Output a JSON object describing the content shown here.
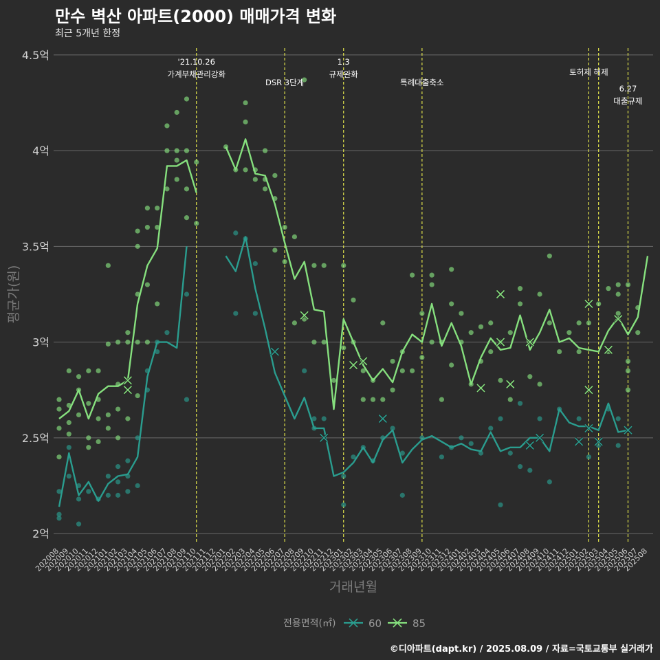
{
  "title": "만수 벽산 아파트(2000) 매매가격 변화",
  "subtitle": "최근 5개년 한정",
  "footer": "©디아파트(dapt.kr) / 2025.08.09 / 자료=국토교통부 실거래가",
  "colors": {
    "background": "#2b2b2b",
    "grid": "#6a6a6a",
    "series_60": "#2a9d8f",
    "series_85": "#86e07e",
    "event_line": "#e0e34a"
  },
  "chart_data": {
    "type": "line",
    "xlabel": "거래년월",
    "ylabel": "평균가(원)",
    "ylim": [
      1.95,
      4.55
    ],
    "yticks": [
      2,
      2.5,
      3,
      3.5,
      4,
      4.5
    ],
    "ytick_labels": [
      "2억",
      "2.5억",
      "3억",
      "3.5억",
      "4억",
      "4.5억"
    ],
    "grid": true,
    "legend_title": "전용면적(㎡)",
    "legend_position": "bottom",
    "months": [
      "202008",
      "202009",
      "202010",
      "202011",
      "202012",
      "202101",
      "202102",
      "202103",
      "202104",
      "202105",
      "202106",
      "202107",
      "202108",
      "202109",
      "202110",
      "202111",
      "202112",
      "202201",
      "202202",
      "202203",
      "202204",
      "202205",
      "202206",
      "202207",
      "202208",
      "202209",
      "202210",
      "202211",
      "202212",
      "202301",
      "202302",
      "202303",
      "202304",
      "202305",
      "202306",
      "202307",
      "202308",
      "202309",
      "202310",
      "202311",
      "202312",
      "202401",
      "202402",
      "202403",
      "202404",
      "202405",
      "202406",
      "202407",
      "202408",
      "202409",
      "202410",
      "202411",
      "202412",
      "202501",
      "202502",
      "202503",
      "202504",
      "202505",
      "202506",
      "202507",
      "202508"
    ],
    "series": [
      {
        "name": "60",
        "color": "#2a9d8f",
        "values": [
          2.14,
          2.42,
          2.2,
          2.27,
          2.17,
          2.26,
          2.3,
          2.31,
          2.4,
          2.82,
          3.0,
          3.0,
          2.97,
          3.5,
          null,
          null,
          null,
          3.45,
          3.37,
          3.55,
          3.28,
          3.07,
          2.84,
          2.72,
          2.6,
          2.71,
          2.55,
          2.55,
          2.3,
          2.32,
          2.37,
          2.45,
          2.37,
          2.49,
          2.54,
          2.37,
          2.44,
          2.49,
          2.51,
          2.48,
          2.45,
          2.47,
          2.44,
          2.43,
          2.53,
          2.43,
          2.45,
          2.45,
          2.5,
          2.5,
          2.43,
          2.65,
          2.58,
          2.56,
          2.56,
          2.54,
          2.68,
          2.53,
          2.54,
          null,
          null
        ],
        "cancelled": [
          [
            "202206",
            2.95
          ],
          [
            "202211",
            2.5
          ],
          [
            "202305",
            2.6
          ],
          [
            "202408",
            2.46
          ],
          [
            "202409",
            2.5
          ],
          [
            "202501",
            2.48
          ],
          [
            "202502",
            2.55
          ],
          [
            "202503",
            2.48
          ],
          [
            "202506",
            2.54
          ]
        ]
      },
      {
        "name": "85",
        "color": "#86e07e",
        "values": [
          2.6,
          2.64,
          2.75,
          2.6,
          2.73,
          2.77,
          2.77,
          2.8,
          3.2,
          3.4,
          3.49,
          3.92,
          3.92,
          3.95,
          3.78,
          null,
          null,
          4.02,
          3.9,
          4.06,
          3.88,
          3.87,
          3.72,
          3.52,
          3.33,
          3.42,
          3.17,
          3.16,
          2.65,
          3.12,
          3.0,
          2.88,
          2.8,
          2.86,
          2.79,
          2.95,
          3.04,
          3.0,
          3.2,
          2.98,
          3.1,
          2.98,
          2.78,
          2.92,
          3.02,
          2.96,
          2.97,
          3.14,
          2.96,
          3.05,
          3.17,
          3.0,
          3.02,
          2.97,
          2.96,
          2.95,
          3.06,
          3.13,
          3.04,
          3.13,
          3.45
        ],
        "cancelled": [
          [
            "202103",
            2.8
          ],
          [
            "202103",
            2.75
          ],
          [
            "202209",
            3.14
          ],
          [
            "202302",
            2.88
          ],
          [
            "202303",
            2.9
          ],
          [
            "202403",
            2.76
          ],
          [
            "202405",
            3.25
          ],
          [
            "202405",
            3.0
          ],
          [
            "202406",
            2.78
          ],
          [
            "202408",
            3.0
          ],
          [
            "202502",
            2.75
          ],
          [
            "202502",
            3.2
          ],
          [
            "202504",
            2.96
          ],
          [
            "202505",
            3.12
          ]
        ]
      }
    ],
    "scatter_60": [
      [
        "202008",
        2.08
      ],
      [
        "202008",
        2.1
      ],
      [
        "202008",
        2.22
      ],
      [
        "202009",
        2.3
      ],
      [
        "202009",
        2.45
      ],
      [
        "202010",
        2.05
      ],
      [
        "202010",
        2.18
      ],
      [
        "202010",
        2.25
      ],
      [
        "202011",
        2.22
      ],
      [
        "202012",
        2.18
      ],
      [
        "202101",
        2.2
      ],
      [
        "202101",
        2.3
      ],
      [
        "202102",
        2.2
      ],
      [
        "202102",
        2.27
      ],
      [
        "202102",
        2.35
      ],
      [
        "202103",
        2.22
      ],
      [
        "202103",
        2.3
      ],
      [
        "202103",
        2.38
      ],
      [
        "202104",
        2.25
      ],
      [
        "202104",
        2.5
      ],
      [
        "202105",
        2.75
      ],
      [
        "202105",
        2.85
      ],
      [
        "202106",
        2.95
      ],
      [
        "202106",
        3.0
      ],
      [
        "202107",
        3.05
      ],
      [
        "202109",
        2.7
      ],
      [
        "202109",
        3.25
      ],
      [
        "202202",
        3.57
      ],
      [
        "202202",
        3.15
      ],
      [
        "202203",
        3.54
      ],
      [
        "202204",
        3.41
      ],
      [
        "202204",
        3.15
      ],
      [
        "202209",
        2.85
      ],
      [
        "202210",
        2.6
      ],
      [
        "202210",
        2.55
      ],
      [
        "202211",
        2.6
      ],
      [
        "202301",
        2.3
      ],
      [
        "202301",
        2.15
      ],
      [
        "202302",
        2.4
      ],
      [
        "202303",
        2.45
      ],
      [
        "202304",
        2.38
      ],
      [
        "202305",
        2.5
      ],
      [
        "202306",
        2.55
      ],
      [
        "202307",
        2.2
      ],
      [
        "202307",
        2.42
      ],
      [
        "202309",
        2.5
      ],
      [
        "202311",
        2.4
      ],
      [
        "202312",
        2.45
      ],
      [
        "202401",
        2.5
      ],
      [
        "202402",
        2.47
      ],
      [
        "202403",
        2.42
      ],
      [
        "202404",
        2.55
      ],
      [
        "202405",
        2.15
      ],
      [
        "202405",
        2.6
      ],
      [
        "202406",
        2.42
      ],
      [
        "202407",
        2.35
      ],
      [
        "202407",
        2.68
      ],
      [
        "202408",
        2.33
      ],
      [
        "202409",
        2.6
      ],
      [
        "202410",
        2.27
      ],
      [
        "202411",
        2.65
      ],
      [
        "202501",
        2.6
      ],
      [
        "202502",
        2.4
      ],
      [
        "202503",
        2.46
      ],
      [
        "202504",
        2.65
      ],
      [
        "202505",
        2.46
      ],
      [
        "202505",
        2.6
      ]
    ],
    "scatter_85": [
      [
        "202008",
        2.55
      ],
      [
        "202008",
        2.65
      ],
      [
        "202008",
        2.7
      ],
      [
        "202008",
        2.4
      ],
      [
        "202009",
        2.52
      ],
      [
        "202009",
        2.58
      ],
      [
        "202009",
        2.67
      ],
      [
        "202009",
        2.85
      ],
      [
        "202010",
        2.62
      ],
      [
        "202010",
        2.82
      ],
      [
        "202010",
        2.75
      ],
      [
        "202011",
        2.5
      ],
      [
        "202011",
        2.45
      ],
      [
        "202011",
        2.68
      ],
      [
        "202011",
        2.85
      ],
      [
        "202012",
        2.7
      ],
      [
        "202012",
        2.85
      ],
      [
        "202012",
        2.6
      ],
      [
        "202012",
        2.48
      ],
      [
        "202101",
        2.62
      ],
      [
        "202101",
        2.55
      ],
      [
        "202101",
        2.99
      ],
      [
        "202101",
        3.4
      ],
      [
        "202102",
        2.5
      ],
      [
        "202102",
        2.78
      ],
      [
        "202102",
        3.0
      ],
      [
        "202102",
        2.65
      ],
      [
        "202103",
        2.6
      ],
      [
        "202103",
        3.0
      ],
      [
        "202103",
        3.05
      ],
      [
        "202104",
        3.0
      ],
      [
        "202104",
        3.25
      ],
      [
        "202104",
        3.5
      ],
      [
        "202104",
        3.58
      ],
      [
        "202104",
        2.72
      ],
      [
        "202105",
        3.0
      ],
      [
        "202105",
        3.3
      ],
      [
        "202105",
        3.6
      ],
      [
        "202105",
        3.7
      ],
      [
        "202106",
        3.6
      ],
      [
        "202106",
        3.2
      ],
      [
        "202106",
        3.7
      ],
      [
        "202107",
        3.8
      ],
      [
        "202107",
        4.0
      ],
      [
        "202107",
        4.13
      ],
      [
        "202108",
        3.85
      ],
      [
        "202108",
        3.95
      ],
      [
        "202108",
        4.0
      ],
      [
        "202108",
        4.2
      ],
      [
        "202109",
        3.65
      ],
      [
        "202109",
        3.8
      ],
      [
        "202109",
        4.0
      ],
      [
        "202109",
        4.27
      ],
      [
        "202110",
        3.62
      ],
      [
        "202110",
        3.94
      ],
      [
        "202201",
        4.02
      ],
      [
        "202202",
        3.9
      ],
      [
        "202203",
        3.9
      ],
      [
        "202203",
        4.15
      ],
      [
        "202203",
        4.25
      ],
      [
        "202204",
        3.85
      ],
      [
        "202204",
        3.9
      ],
      [
        "202205",
        3.8
      ],
      [
        "202205",
        3.85
      ],
      [
        "202205",
        4.0
      ],
      [
        "202206",
        3.75
      ],
      [
        "202206",
        3.87
      ],
      [
        "202206",
        3.48
      ],
      [
        "202207",
        3.42
      ],
      [
        "202207",
        3.6
      ],
      [
        "202208",
        3.55
      ],
      [
        "202208",
        3.1
      ],
      [
        "202209",
        3.12
      ],
      [
        "202209",
        4.37
      ],
      [
        "202210",
        3.4
      ],
      [
        "202210",
        3.0
      ],
      [
        "202211",
        3.4
      ],
      [
        "202211",
        3.0
      ],
      [
        "202212",
        2.8
      ],
      [
        "202301",
        3.4
      ],
      [
        "202301",
        2.97
      ],
      [
        "202302",
        3.22
      ],
      [
        "202302",
        3.0
      ],
      [
        "202303",
        2.85
      ],
      [
        "202303",
        2.7
      ],
      [
        "202304",
        2.8
      ],
      [
        "202304",
        2.7
      ],
      [
        "202305",
        3.1
      ],
      [
        "202305",
        2.7
      ],
      [
        "202306",
        2.75
      ],
      [
        "202306",
        2.9
      ],
      [
        "202307",
        2.95
      ],
      [
        "202307",
        2.85
      ],
      [
        "202308",
        2.85
      ],
      [
        "202308",
        3.35
      ],
      [
        "202309",
        2.92
      ],
      [
        "202309",
        3.15
      ],
      [
        "202310",
        3.35
      ],
      [
        "202310",
        3.3
      ],
      [
        "202310",
        3.0
      ],
      [
        "202311",
        2.7
      ],
      [
        "202311",
        3.0
      ],
      [
        "202312",
        3.2
      ],
      [
        "202312",
        2.88
      ],
      [
        "202312",
        3.38
      ],
      [
        "202401",
        3.0
      ],
      [
        "202401",
        3.15
      ],
      [
        "202402",
        2.78
      ],
      [
        "202402",
        3.05
      ],
      [
        "202403",
        2.9
      ],
      [
        "202403",
        3.08
      ],
      [
        "202404",
        3.1
      ],
      [
        "202404",
        2.95
      ],
      [
        "202405",
        3.0
      ],
      [
        "202405",
        2.8
      ],
      [
        "202406",
        3.05
      ],
      [
        "202406",
        2.7
      ],
      [
        "202407",
        3.2
      ],
      [
        "202407",
        3.28
      ],
      [
        "202408",
        2.82
      ],
      [
        "202408",
        3.0
      ],
      [
        "202409",
        3.25
      ],
      [
        "202409",
        2.78
      ],
      [
        "202410",
        3.1
      ],
      [
        "202410",
        3.45
      ],
      [
        "202411",
        2.95
      ],
      [
        "202412",
        3.05
      ],
      [
        "202501",
        3.1
      ],
      [
        "202501",
        2.95
      ],
      [
        "202502",
        3.1
      ],
      [
        "202503",
        3.2
      ],
      [
        "202504",
        3.28
      ],
      [
        "202504",
        2.95
      ],
      [
        "202505",
        3.3
      ],
      [
        "202505",
        3.25
      ],
      [
        "202505",
        3.15
      ],
      [
        "202506",
        3.3
      ],
      [
        "202506",
        2.9
      ],
      [
        "202506",
        2.85
      ],
      [
        "202506",
        2.75
      ],
      [
        "202507",
        3.18
      ],
      [
        "202507",
        3.05
      ]
    ],
    "annotations": [
      {
        "month": "202110",
        "lines": [
          "'21.10.26",
          "가계부채관리강화"
        ],
        "level": 0
      },
      {
        "month": "202207",
        "lines": [
          "DSR 3단계"
        ],
        "level": 1
      },
      {
        "month": "202301",
        "lines": [
          "1.3",
          "규제완화"
        ],
        "level": 0
      },
      {
        "month": "202309",
        "lines": [
          "특례대출축소"
        ],
        "level": 1
      },
      {
        "month": "202502",
        "lines": [
          "토허제 해제"
        ],
        "level": 0.5
      },
      {
        "month": "202503",
        "lines": [],
        "level": 0
      },
      {
        "month": "202506",
        "lines": [
          "6.27",
          "대출규제"
        ],
        "level": 1.3
      }
    ]
  }
}
